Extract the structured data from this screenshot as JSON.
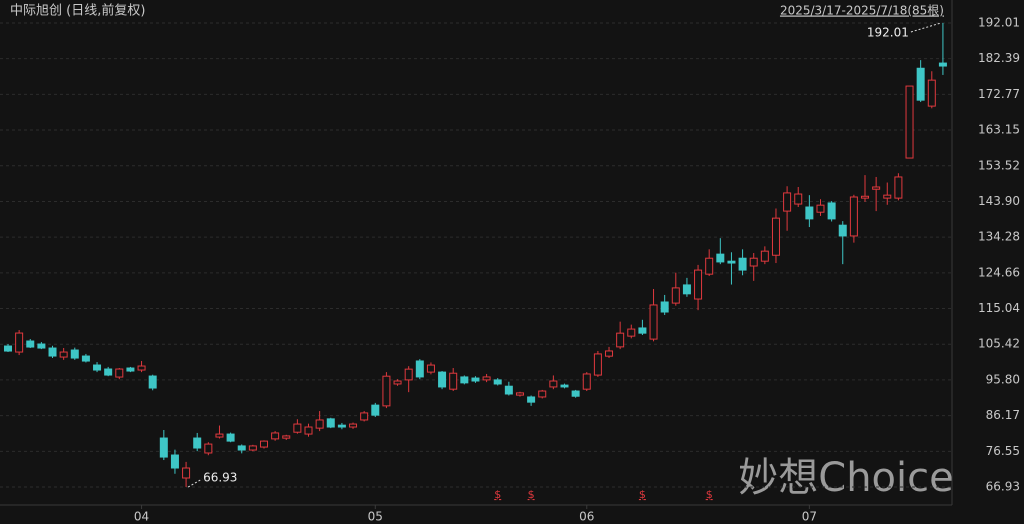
{
  "chart_data": {
    "type": "candlestick",
    "title": "中际旭创 (日线,前复权)",
    "subtitle": "2025/3/17-2025/7/18(85根)",
    "watermark": "妙想Choice",
    "up_color": "#e0393e",
    "down_color": "#3ec6c6",
    "ylim": [
      62.08,
      198.2
    ],
    "yticks": [
      66.93,
      76.55,
      86.17,
      {
        "value": 95.8,
        "label": "95.80"
      },
      105.42,
      115.04,
      124.66,
      134.28,
      {
        "value": 143.9,
        "label": "143.90"
      },
      153.52,
      163.15,
      172.77,
      182.39,
      192.01
    ],
    "grid": true,
    "categories": [
      null,
      null,
      null,
      null,
      null,
      null,
      null,
      null,
      null,
      null,
      null,
      null,
      "04",
      null,
      null,
      null,
      null,
      null,
      null,
      null,
      null,
      null,
      null,
      null,
      null,
      null,
      null,
      null,
      null,
      null,
      null,
      null,
      null,
      "05",
      null,
      null,
      null,
      null,
      null,
      null,
      null,
      null,
      null,
      null,
      null,
      null,
      null,
      null,
      null,
      null,
      null,
      null,
      "06",
      null,
      null,
      null,
      null,
      null,
      null,
      null,
      null,
      null,
      null,
      null,
      null,
      null,
      null,
      null,
      null,
      null,
      null,
      null,
      "07",
      null,
      null,
      null,
      null,
      null,
      null,
      null,
      null,
      null,
      null,
      null,
      null
    ],
    "open": [
      104.93,
      103.31,
      106.28,
      105.47,
      104.39,
      101.96,
      103.85,
      102.23,
      99.81,
      98.73,
      96.57,
      99.0,
      98.46,
      96.84,
      80.13,
      75.55,
      69.36,
      80.13,
      76.1,
      80.4,
      81.2,
      78.0,
      76.9,
      77.7,
      79.9,
      80.1,
      81.7,
      81.2,
      82.8,
      85.3,
      83.6,
      83.1,
      85.0,
      89.0,
      88.8,
      94.7,
      95.8,
      100.9,
      97.9,
      97.9,
      93.3,
      96.6,
      96.3,
      95.8,
      95.8,
      94.1,
      91.7,
      91.2,
      91.2,
      93.9,
      94.4,
      92.8,
      93.3,
      97.1,
      102.2,
      104.7,
      107.6,
      109.8,
      106.8,
      116.8,
      116.5,
      121.4,
      117.6,
      124.3,
      129.7,
      127.8,
      128.6,
      126.5,
      127.8,
      129.4,
      141.3,
      143.2,
      142.4,
      141.0,
      143.5,
      137.5,
      134.6,
      144.8,
      147.2,
      144.8,
      144.8,
      155.6,
      179.8,
      169.6,
      181.2
    ],
    "high": [
      105.47,
      109.24,
      106.82,
      106.0,
      105.0,
      104.4,
      104.5,
      102.8,
      100.6,
      99.3,
      99.0,
      99.3,
      100.9,
      97.2,
      82.3,
      77.0,
      73.7,
      81.5,
      79.0,
      83.5,
      81.6,
      78.4,
      78.3,
      79.5,
      82.0,
      81.0,
      85.2,
      84.0,
      87.4,
      85.6,
      84.2,
      84.3,
      87.4,
      89.6,
      97.9,
      96.0,
      99.5,
      101.4,
      100.5,
      98.2,
      99.0,
      97.0,
      96.8,
      97.4,
      96.3,
      95.3,
      92.6,
      91.6,
      93.1,
      97.0,
      94.8,
      93.1,
      97.9,
      103.6,
      104.7,
      111.5,
      110.7,
      112.0,
      120.3,
      118.7,
      124.7,
      123.3,
      126.8,
      131.0,
      134.0,
      130.2,
      131.0,
      130.0,
      131.8,
      142.0,
      148.0,
      147.8,
      145.6,
      144.5,
      144.0,
      138.6,
      145.7,
      151.0,
      150.5,
      149.0,
      151.5,
      175.0,
      182.0,
      179.0,
      192.01
    ],
    "low": [
      103.31,
      102.5,
      104.39,
      104.1,
      101.7,
      101.2,
      101.2,
      100.5,
      97.9,
      96.8,
      96.0,
      97.9,
      97.9,
      93.0,
      74.2,
      70.5,
      66.93,
      76.6,
      75.5,
      80.0,
      79.0,
      76.0,
      76.6,
      77.3,
      79.4,
      79.6,
      81.3,
      80.5,
      82.0,
      82.8,
      82.5,
      82.6,
      84.6,
      85.8,
      88.2,
      94.2,
      92.5,
      96.0,
      97.3,
      93.3,
      92.8,
      94.6,
      95.0,
      95.2,
      94.3,
      91.6,
      91.3,
      88.8,
      90.8,
      93.3,
      93.5,
      91.0,
      92.8,
      96.6,
      101.7,
      104.1,
      107.0,
      107.9,
      106.2,
      113.3,
      115.8,
      118.2,
      114.6,
      123.8,
      127.0,
      121.5,
      124.0,
      122.5,
      127.0,
      127.3,
      136.0,
      142.4,
      137.0,
      140.0,
      138.5,
      127.0,
      132.8,
      143.8,
      141.3,
      143.0,
      144.2,
      155.6,
      170.7,
      169.0,
      178.0
    ],
    "close": [
      103.58,
      108.43,
      104.66,
      104.39,
      102.23,
      103.31,
      101.69,
      100.88,
      98.46,
      97.11,
      98.73,
      98.19,
      99.54,
      93.61,
      75.0,
      72.05,
      72.05,
      77.44,
      78.5,
      81.2,
      79.3,
      76.9,
      78.0,
      79.3,
      81.5,
      80.7,
      83.9,
      83.1,
      85.0,
      83.1,
      83.1,
      83.9,
      86.9,
      86.3,
      96.8,
      95.5,
      98.7,
      96.6,
      99.8,
      93.9,
      97.6,
      95.0,
      95.5,
      96.6,
      94.7,
      92.0,
      92.3,
      89.8,
      92.8,
      95.5,
      93.9,
      91.4,
      97.4,
      102.8,
      103.6,
      108.4,
      109.5,
      108.4,
      116.0,
      114.1,
      120.6,
      119.0,
      125.4,
      128.6,
      127.6,
      127.3,
      125.4,
      128.6,
      130.5,
      139.4,
      146.2,
      145.9,
      139.2,
      142.9,
      139.2,
      134.6,
      145.1,
      145.3,
      147.8,
      145.6,
      150.5,
      175.0,
      171.2,
      176.6,
      180.4
    ],
    "events": [
      {
        "index": 44,
        "label": "$"
      },
      {
        "index": 47,
        "label": "$"
      },
      {
        "index": 57,
        "label": "$"
      },
      {
        "index": 63,
        "label": "$"
      }
    ]
  }
}
